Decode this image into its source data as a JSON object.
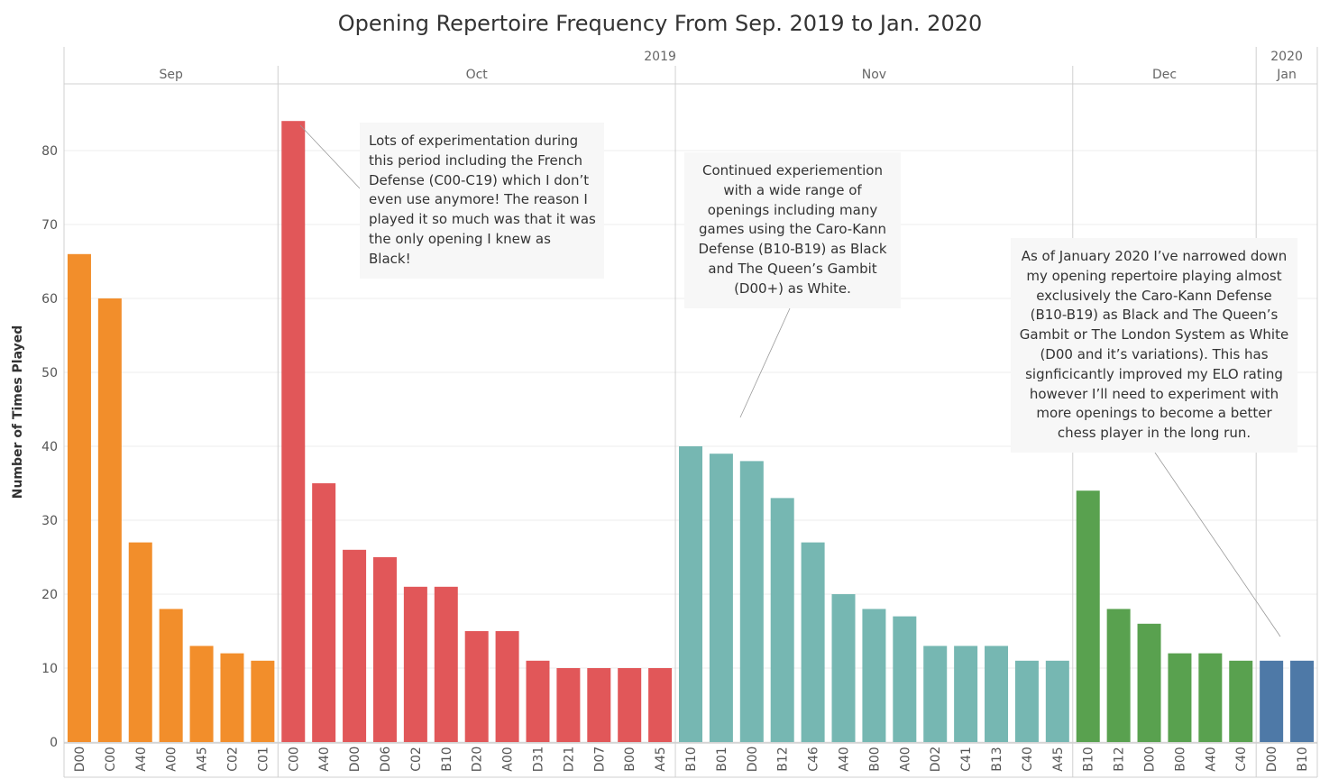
{
  "chart_data": {
    "type": "bar",
    "title": "Opening Repertoire Frequency From Sep. 2019 to Jan. 2020",
    "ylabel": "Number of Times Played",
    "ylim": [
      0,
      88
    ],
    "yticks": [
      0,
      10,
      20,
      30,
      40,
      50,
      60,
      70,
      80
    ],
    "grid": true,
    "years": [
      {
        "label": "2019",
        "months": 4
      },
      {
        "label": "2020",
        "months": 1
      }
    ],
    "groups": [
      {
        "month": "Sep",
        "color": "#f28e2b",
        "categories": [
          "D00",
          "C00",
          "A40",
          "A00",
          "A45",
          "C02",
          "C01"
        ],
        "values": [
          66,
          60,
          27,
          18,
          13,
          12,
          11
        ]
      },
      {
        "month": "Oct",
        "color": "#e15759",
        "categories": [
          "C00",
          "A40",
          "D00",
          "D06",
          "C02",
          "B10",
          "D20",
          "A00",
          "D31",
          "D21",
          "D07",
          "B00",
          "A45"
        ],
        "values": [
          84,
          35,
          26,
          25,
          21,
          21,
          15,
          15,
          11,
          10,
          10,
          10,
          10
        ]
      },
      {
        "month": "Nov",
        "color": "#76b7b2",
        "categories": [
          "B10",
          "B01",
          "D00",
          "B12",
          "C46",
          "A40",
          "B00",
          "A00",
          "D02",
          "C41",
          "B13",
          "C40",
          "A45"
        ],
        "values": [
          40,
          39,
          38,
          33,
          27,
          20,
          18,
          17,
          13,
          13,
          13,
          11,
          11
        ]
      },
      {
        "month": "Dec",
        "color": "#59a14f",
        "categories": [
          "B10",
          "B12",
          "D00",
          "B00",
          "A40",
          "C40"
        ],
        "values": [
          34,
          18,
          16,
          12,
          12,
          11
        ]
      },
      {
        "month": "Jan",
        "color": "#4e79a7",
        "categories": [
          "D00",
          "B10"
        ],
        "values": [
          11,
          11
        ]
      }
    ],
    "annotations": [
      {
        "text": "Lots of experimentation during this period including the French Defense (C00-C19) which I don’t even use anymore! The reason I played it so much was that it was the only opening I knew as Black!"
      },
      {
        "text": "Continued experiemention with a wide range of openings including many games using the Caro-Kann Defense (B10-B19) as Black and The Queen’s Gambit (D00+) as White."
      },
      {
        "text": "As of January 2020 I’ve narrowed down my opening repertoire playing almost exclusively the Caro-Kann Defense (B10-B19) as Black and The Queen’s Gambit or The London System as White (D00 and it’s variations). This has signficicantly improved my ELO rating however I’ll need to experiment with more openings to become a better chess player in the long run."
      }
    ]
  }
}
